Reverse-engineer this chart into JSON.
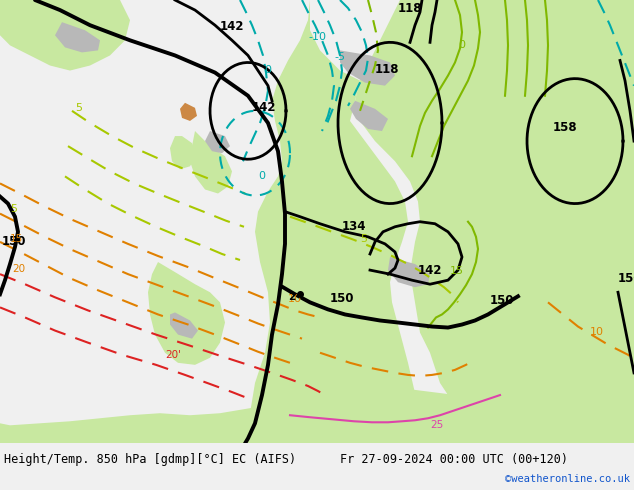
{
  "title_left": "Height/Temp. 850 hPa [gdmp][°C] EC (AIFS)",
  "title_right": "Fr 27-09-2024 00:00 UTC (00+120)",
  "credit": "©weatheronline.co.uk",
  "fig_width": 6.34,
  "fig_height": 4.9,
  "dpi": 100,
  "land_green": "#c8e8a0",
  "land_green_dark": "#b0d880",
  "land_gray": "#b8b8b8",
  "sea_color": "#e0e8f0",
  "bottom_bg": "#f0f0f0",
  "title_fontsize": 8.5,
  "credit_color": "#1155cc",
  "col_black": "#000000",
  "col_green": "#80b800",
  "col_cyan": "#00aaaa",
  "col_orange": "#e08000",
  "col_red": "#dd2222",
  "col_pink": "#dd44aa",
  "col_yellow_green": "#a8c800"
}
